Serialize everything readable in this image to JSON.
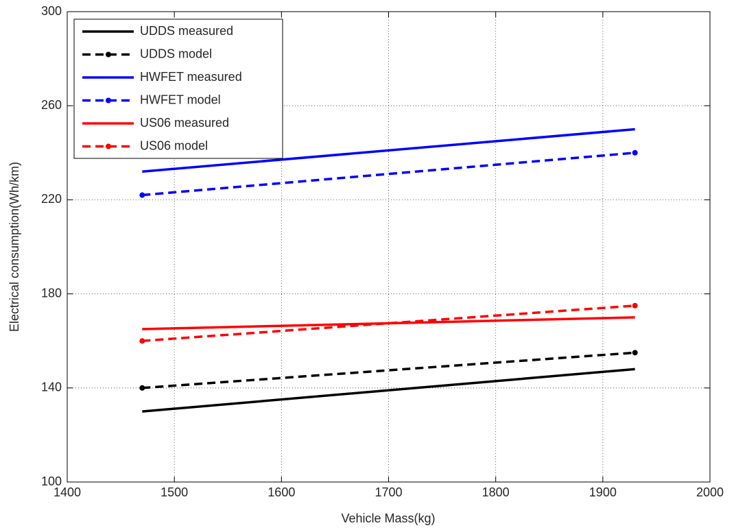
{
  "chart_data": {
    "type": "line",
    "xlabel": "Vehicle Mass(kg)",
    "ylabel": "Electrical consumption(Wh/km)",
    "x": [
      1470,
      1930
    ],
    "xlim": [
      1400,
      2000
    ],
    "xticks": [
      1400,
      1500,
      1600,
      1700,
      1800,
      1900,
      2000
    ],
    "ylim": [
      100,
      300
    ],
    "yticks": [
      100,
      140,
      180,
      220,
      260,
      300
    ],
    "grid": true,
    "legend": "upper left",
    "series": [
      {
        "name": "UDDS measured",
        "color": "#000000",
        "linestyle": "solid",
        "marker": "none",
        "values": [
          130,
          148
        ]
      },
      {
        "name": "UDDS model",
        "color": "#000000",
        "linestyle": "dashed",
        "marker": "dot",
        "values": [
          140,
          155
        ]
      },
      {
        "name": "HWFET measured",
        "color": "#0000ff",
        "linestyle": "solid",
        "marker": "none",
        "values": [
          232,
          250
        ]
      },
      {
        "name": "HWFET model",
        "color": "#0000ff",
        "linestyle": "dashed",
        "marker": "dot",
        "values": [
          222,
          240
        ]
      },
      {
        "name": "US06 measured",
        "color": "#ff0000",
        "linestyle": "solid",
        "marker": "none",
        "values": [
          165,
          170
        ]
      },
      {
        "name": "US06 model",
        "color": "#ff0000",
        "linestyle": "dashed",
        "marker": "dot",
        "values": [
          160,
          175
        ]
      }
    ]
  }
}
